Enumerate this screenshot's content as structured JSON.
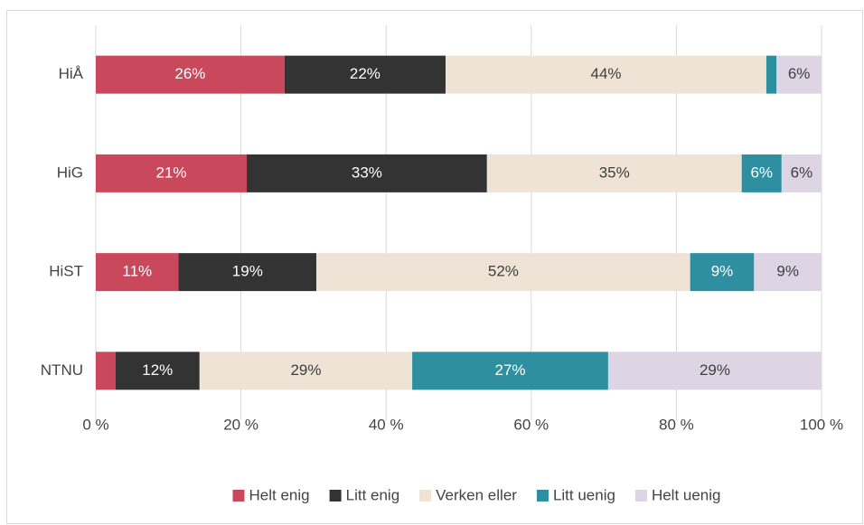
{
  "chart_data": {
    "type": "stacked_barh",
    "categories": [
      "HiÅ",
      "HiG",
      "HiST",
      "NTNU"
    ],
    "series": [
      {
        "name": "Helt enig",
        "color": "#c9485b",
        "values": [
          26,
          20.8,
          11.4,
          2.7
        ],
        "value_labels": [
          "26%",
          "21%",
          "11%",
          null
        ]
      },
      {
        "name": "Litt enig",
        "color": "#333333",
        "values": [
          22.2,
          33.1,
          19.0,
          11.6
        ],
        "value_labels": [
          "22%",
          "33%",
          "19%",
          "12%"
        ]
      },
      {
        "name": "Verken eller",
        "color": "#eee3d4",
        "values": [
          44.2,
          35.1,
          51.5,
          29.3
        ],
        "value_labels": [
          "44%",
          "35%",
          "52%",
          "29%"
        ]
      },
      {
        "name": "Litt uenig",
        "color": "#2e8fa0",
        "values": [
          1.4,
          5.5,
          8.8,
          27
        ],
        "value_labels": [
          null,
          "6%",
          "9%",
          "27%"
        ]
      },
      {
        "name": "Helt uenig",
        "color": "#ddd4e4",
        "values": [
          6.2,
          5.5,
          9.3,
          29.4
        ],
        "value_labels": [
          "6%",
          "6%",
          "9%",
          "29%"
        ]
      }
    ],
    "xlim": [
      0,
      100
    ],
    "xticks": [
      {
        "value": 0,
        "label": "0 %"
      },
      {
        "value": 20,
        "label": "20 %"
      },
      {
        "value": 40,
        "label": "40 %"
      },
      {
        "value": 60,
        "label": "60 %"
      },
      {
        "value": 80,
        "label": "80 %"
      },
      {
        "value": 100,
        "label": "100 %"
      }
    ],
    "grid": true,
    "legend": "bottom"
  }
}
